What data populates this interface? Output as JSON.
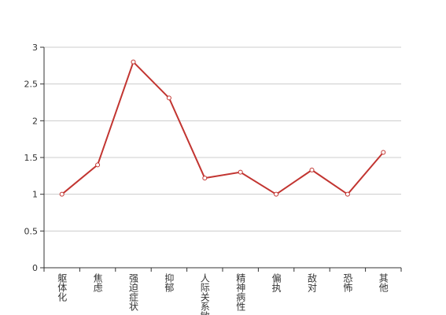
{
  "chart_data": {
    "type": "line",
    "categories": [
      "躯体化",
      "焦虑",
      "强迫症状",
      "抑郁",
      "人际关系敏感",
      "精神病性",
      "偏执",
      "敌对",
      "恐怖",
      "其他"
    ],
    "values": [
      1.0,
      1.4,
      2.8,
      2.31,
      1.22,
      1.3,
      1.0,
      1.33,
      1.0,
      1.57
    ],
    "color": "#c23531",
    "ylim": [
      0,
      3
    ],
    "yticks": [
      0,
      0.5,
      1,
      1.5,
      2,
      2.5,
      3
    ],
    "grid": true
  }
}
